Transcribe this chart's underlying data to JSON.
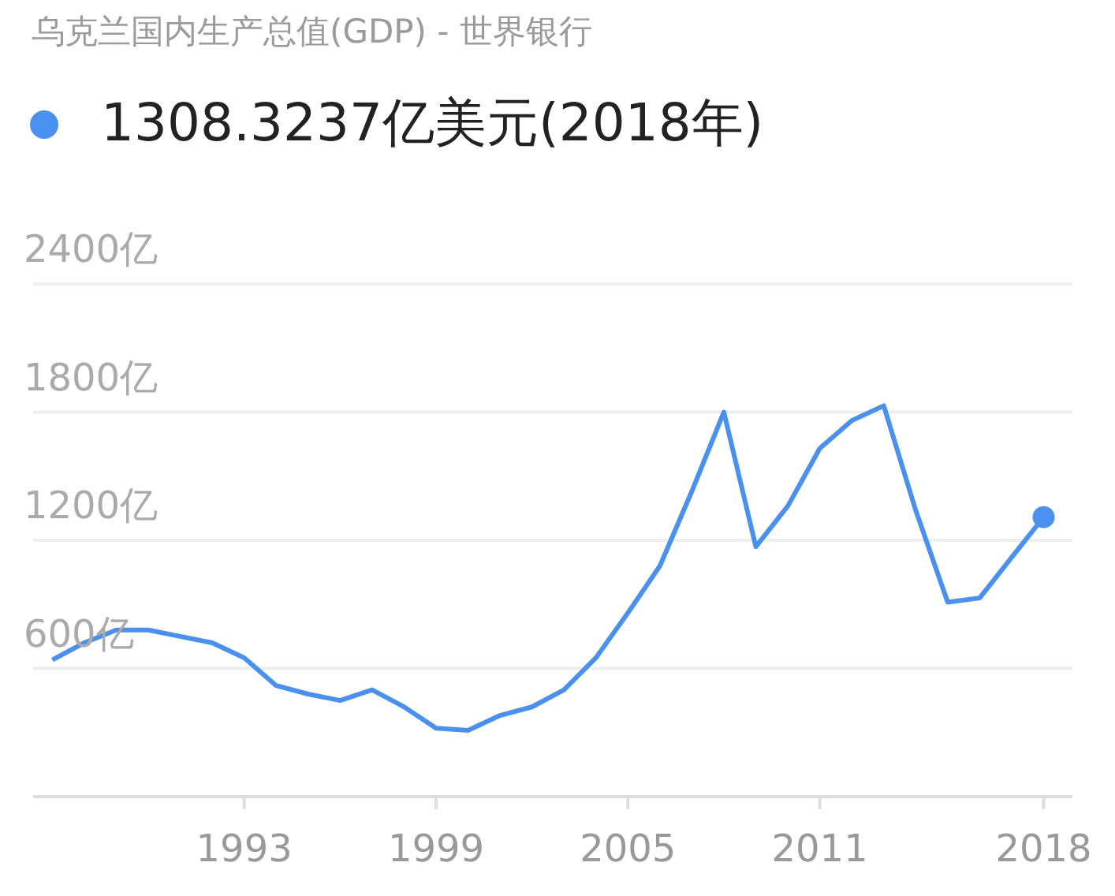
{
  "chart_data": {
    "type": "line",
    "title": "乌克兰国内生产总值(GDP) - 世界银行",
    "x": [
      1987,
      1988,
      1989,
      1990,
      1991,
      1992,
      1993,
      1994,
      1995,
      1996,
      1997,
      1998,
      1999,
      2000,
      2001,
      2002,
      2003,
      2004,
      2005,
      2006,
      2007,
      2008,
      2009,
      2010,
      2011,
      2012,
      2013,
      2014,
      2015,
      2016,
      2017,
      2018
    ],
    "series": [
      {
        "name": "1308.3237亿美元(2018年)",
        "color": "#4a90ee",
        "values": [
          640,
          720,
          780,
          780,
          750,
          720,
          650,
          520,
          480,
          450,
          500,
          420,
          320,
          310,
          380,
          420,
          500,
          650,
          860,
          1080,
          1430,
          1800,
          1170,
          1360,
          1630,
          1760,
          1830,
          1340,
          910,
          930,
          1120,
          1308.3237
        ]
      }
    ],
    "xlim": [
      1986.4,
      2018.9
    ],
    "xticks": [
      1993,
      1999,
      2005,
      2011,
      2018
    ],
    "ylim": [
      0,
      2400
    ],
    "yticks": [
      {
        "value": 600,
        "label": "600亿"
      },
      {
        "value": 1200,
        "label": "1200亿"
      },
      {
        "value": 1800,
        "label": "1800亿"
      },
      {
        "value": 2400,
        "label": "2400亿"
      }
    ],
    "grid": "y",
    "legend": "top left",
    "marker": "none",
    "line_style": "solid"
  }
}
